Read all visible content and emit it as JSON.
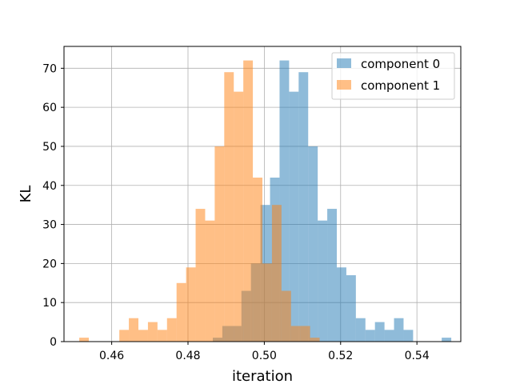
{
  "chart_data": {
    "type": "histogram",
    "xlabel": "iteration",
    "ylabel": "KL",
    "xlim": [
      0.4475,
      0.5515
    ],
    "ylim": [
      0,
      75.6
    ],
    "xticks": [
      0.46,
      0.48,
      0.5,
      0.52,
      0.54
    ],
    "xtick_labels": [
      "0.46",
      "0.48",
      "0.50",
      "0.52",
      "0.54"
    ],
    "yticks": [
      0,
      10,
      20,
      30,
      40,
      50,
      60,
      70
    ],
    "ytick_labels": [
      "0",
      "10",
      "20",
      "30",
      "40",
      "50",
      "60",
      "70"
    ],
    "grid": true,
    "legend_position": "upper right",
    "series": [
      {
        "name": "component 0",
        "color": "#1f77b4",
        "alpha": 0.5,
        "bins": [
          {
            "x0": 0.4865,
            "x1": 0.489,
            "count": 1
          },
          {
            "x0": 0.489,
            "x1": 0.494,
            "count": 4
          },
          {
            "x0": 0.494,
            "x1": 0.4965,
            "count": 13
          },
          {
            "x0": 0.4965,
            "x1": 0.499,
            "count": 20
          },
          {
            "x0": 0.499,
            "x1": 0.5015,
            "count": 35
          },
          {
            "x0": 0.5015,
            "x1": 0.504,
            "count": 42
          },
          {
            "x0": 0.504,
            "x1": 0.5065,
            "count": 72
          },
          {
            "x0": 0.5065,
            "x1": 0.509,
            "count": 64
          },
          {
            "x0": 0.509,
            "x1": 0.5115,
            "count": 69
          },
          {
            "x0": 0.5115,
            "x1": 0.514,
            "count": 50
          },
          {
            "x0": 0.514,
            "x1": 0.5165,
            "count": 31
          },
          {
            "x0": 0.5165,
            "x1": 0.519,
            "count": 34
          },
          {
            "x0": 0.519,
            "x1": 0.5215,
            "count": 19
          },
          {
            "x0": 0.5215,
            "x1": 0.524,
            "count": 17
          },
          {
            "x0": 0.524,
            "x1": 0.5265,
            "count": 6
          },
          {
            "x0": 0.5265,
            "x1": 0.529,
            "count": 3
          },
          {
            "x0": 0.529,
            "x1": 0.5315,
            "count": 5
          },
          {
            "x0": 0.5315,
            "x1": 0.534,
            "count": 3
          },
          {
            "x0": 0.534,
            "x1": 0.5365,
            "count": 6
          },
          {
            "x0": 0.5365,
            "x1": 0.539,
            "count": 3
          },
          {
            "x0": 0.539,
            "x1": 0.5415,
            "count": 0
          },
          {
            "x0": 0.544,
            "x1": 0.5465,
            "count": 0
          },
          {
            "x0": 0.5465,
            "x1": 0.549,
            "count": 1
          }
        ]
      },
      {
        "name": "component 1",
        "color": "#ff7f0e",
        "alpha": 0.5,
        "bins": [
          {
            "x0": 0.4515,
            "x1": 0.454,
            "count": 1
          },
          {
            "x0": 0.462,
            "x1": 0.4645,
            "count": 3
          },
          {
            "x0": 0.4645,
            "x1": 0.467,
            "count": 6
          },
          {
            "x0": 0.467,
            "x1": 0.4695,
            "count": 3
          },
          {
            "x0": 0.4695,
            "x1": 0.472,
            "count": 5
          },
          {
            "x0": 0.472,
            "x1": 0.4745,
            "count": 3
          },
          {
            "x0": 0.4745,
            "x1": 0.477,
            "count": 6
          },
          {
            "x0": 0.477,
            "x1": 0.4795,
            "count": 15
          },
          {
            "x0": 0.4795,
            "x1": 0.482,
            "count": 19
          },
          {
            "x0": 0.482,
            "x1": 0.4845,
            "count": 34
          },
          {
            "x0": 0.4845,
            "x1": 0.487,
            "count": 31
          },
          {
            "x0": 0.487,
            "x1": 0.4895,
            "count": 50
          },
          {
            "x0": 0.4895,
            "x1": 0.492,
            "count": 69
          },
          {
            "x0": 0.492,
            "x1": 0.4945,
            "count": 64
          },
          {
            "x0": 0.4945,
            "x1": 0.497,
            "count": 72
          },
          {
            "x0": 0.497,
            "x1": 0.4995,
            "count": 42
          },
          {
            "x0": 0.4995,
            "x1": 0.502,
            "count": 20
          },
          {
            "x0": 0.502,
            "x1": 0.5045,
            "count": 35
          },
          {
            "x0": 0.5045,
            "x1": 0.507,
            "count": 13
          },
          {
            "x0": 0.507,
            "x1": 0.5095,
            "count": 4
          },
          {
            "x0": 0.5095,
            "x1": 0.512,
            "count": 4
          },
          {
            "x0": 0.512,
            "x1": 0.5145,
            "count": 1
          }
        ]
      }
    ]
  }
}
